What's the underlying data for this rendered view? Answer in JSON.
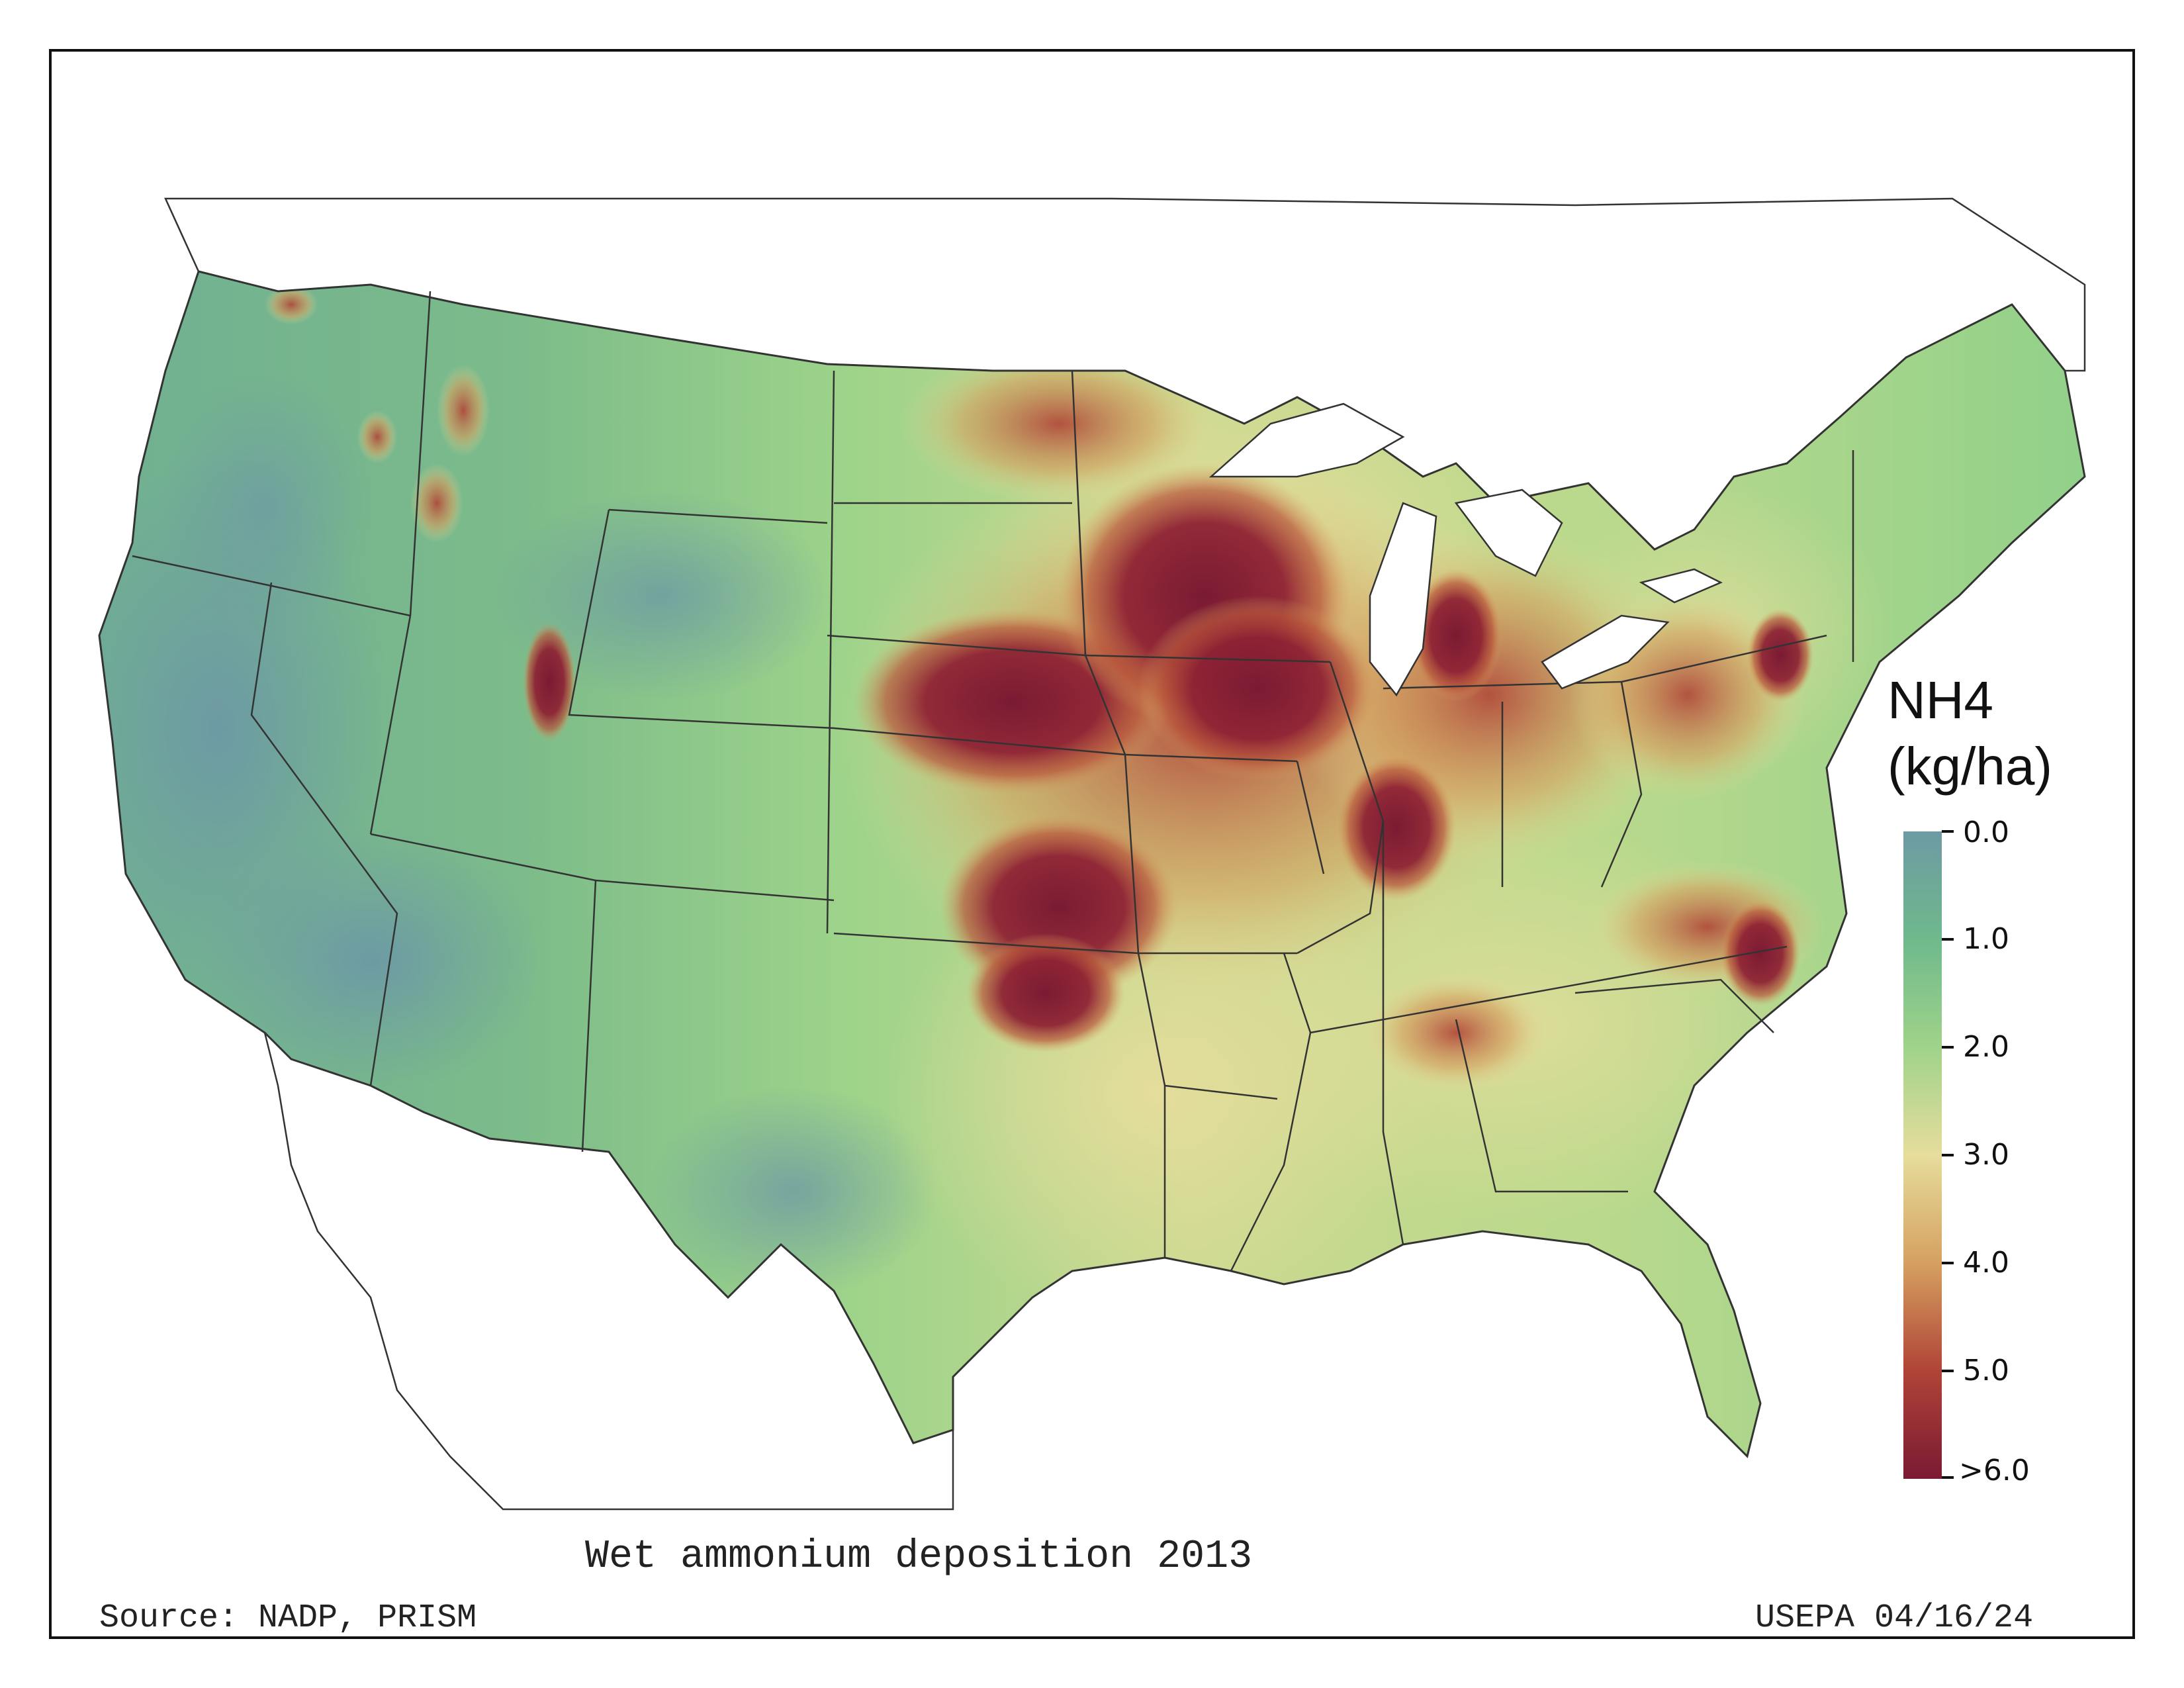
{
  "map": {
    "title": "Wet ammonium deposition 2013",
    "source": "Source: NADP, PRISM",
    "credit": "USEPA 04/16/24"
  },
  "legend": {
    "variable": "NH4",
    "units": "(kg/ha)",
    "ticks": [
      "0.0",
      "1.0",
      "2.0",
      "3.0",
      "4.0",
      "5.0",
      ">6.0"
    ],
    "colors": [
      "#6d9aa4",
      "#6fb98c",
      "#9fd38a",
      "#e6dd9c",
      "#d6a060",
      "#b04437",
      "#7a1a33"
    ]
  }
}
